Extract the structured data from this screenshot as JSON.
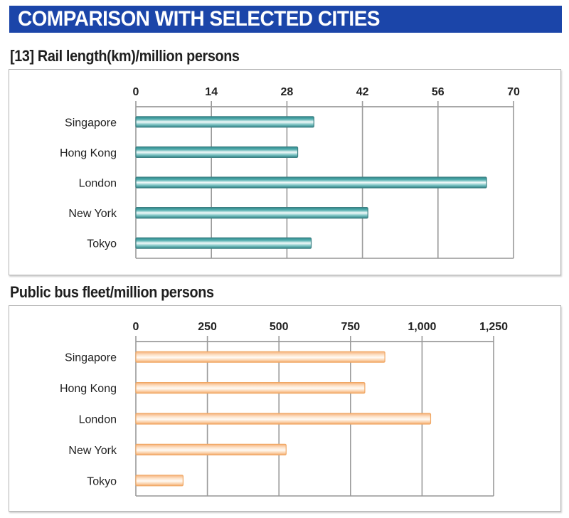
{
  "header": {
    "title": "COMPARISON WITH SELECTED CITIES"
  },
  "colors": {
    "banner": "#1b45a9",
    "rail_bar": "#2e9a9c",
    "bus_bar": "#f2a35c"
  },
  "chart_data": [
    {
      "type": "bar",
      "orientation": "horizontal",
      "title": "[13]  Rail length(km)/million persons",
      "xlabel": "",
      "ylabel": "",
      "categories": [
        "Singapore",
        "Hong Kong",
        "London",
        "New York",
        "Tokyo"
      ],
      "values": [
        33,
        30,
        65,
        43,
        32.5
      ],
      "xlim": [
        0,
        70
      ],
      "ticks": [
        0,
        14,
        28,
        42,
        56,
        70
      ],
      "tick_labels": [
        "0",
        "14",
        "28",
        "42",
        "56",
        "70"
      ],
      "axis_position": "top",
      "grid": true,
      "legend": "none"
    },
    {
      "type": "bar",
      "orientation": "horizontal",
      "title": "Public bus fleet/million persons",
      "xlabel": "",
      "ylabel": "",
      "categories": [
        "Singapore",
        "Hong Kong",
        "London",
        "New York",
        "Tokyo"
      ],
      "values": [
        870,
        800,
        1030,
        525,
        165
      ],
      "xlim": [
        0,
        1250
      ],
      "ticks": [
        0,
        250,
        500,
        750,
        1000,
        1250
      ],
      "tick_labels": [
        "0",
        "250",
        "500",
        "750",
        "1,000",
        "1,250"
      ],
      "axis_position": "top",
      "grid": true,
      "legend": "none"
    }
  ]
}
